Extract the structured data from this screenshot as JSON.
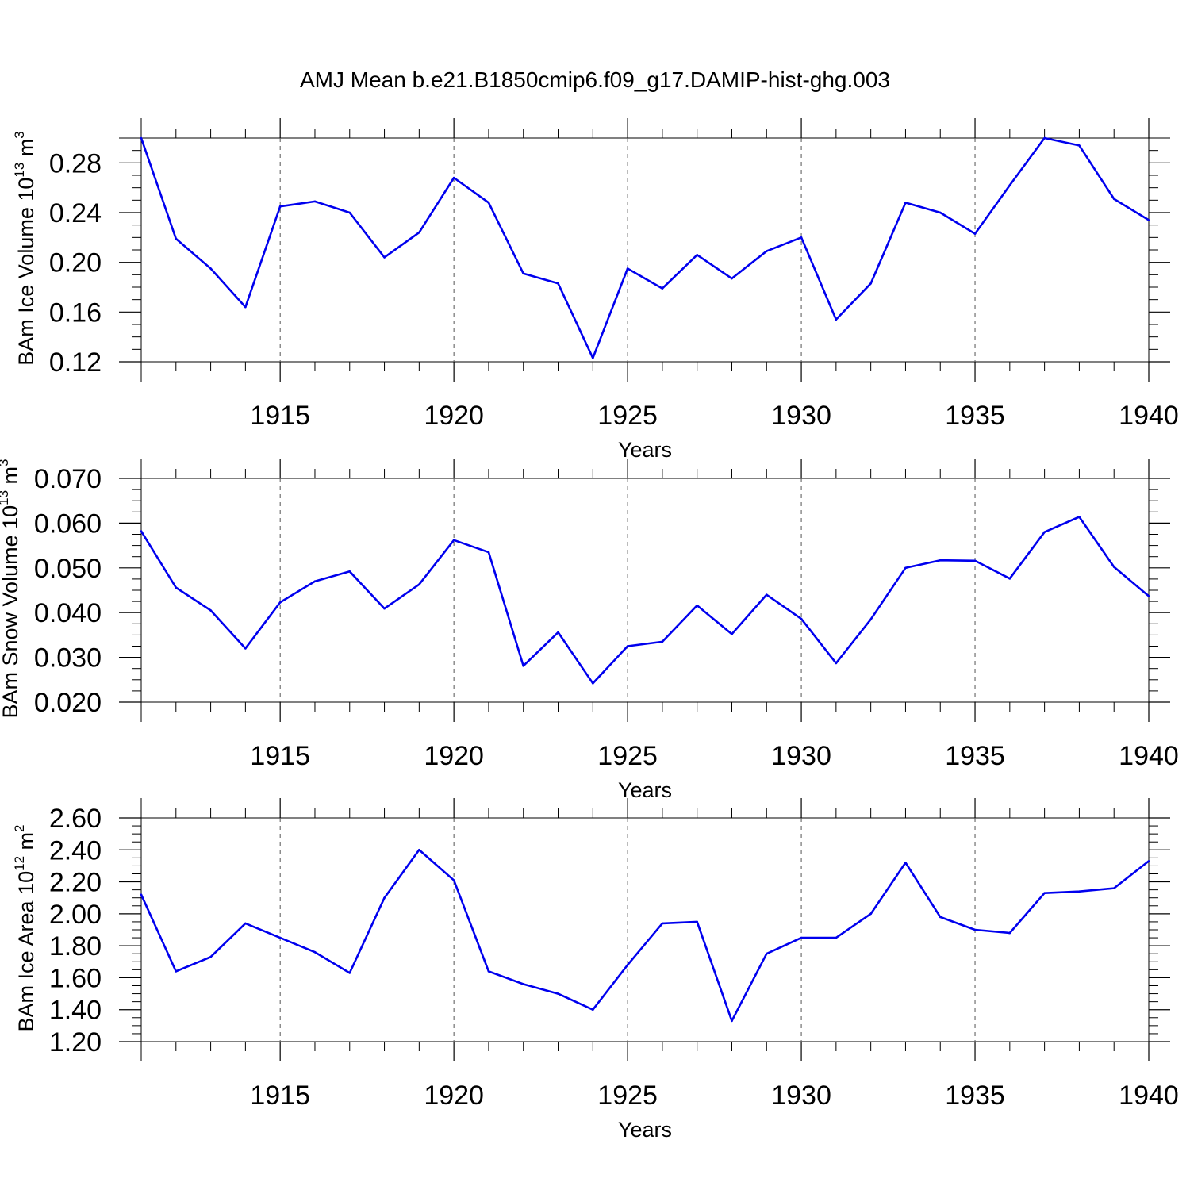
{
  "title": "AMJ Mean b.e21.B1850cmip6.f09_g17.DAMIP-hist-ghg.003",
  "chart_data": [
    {
      "type": "line",
      "ylabel": {
        "prefix": "BAm Ice Volume 10",
        "exp": "13",
        "unit": " m",
        "unit_exp": "3"
      },
      "xlabel": "Years",
      "xlim": [
        1911,
        1940
      ],
      "ylim": [
        0.12,
        0.3
      ],
      "yticks": [
        "0.12",
        "0.16",
        "0.20",
        "0.24",
        "0.28"
      ],
      "xticks": [
        "1915",
        "1920",
        "1925",
        "1930",
        "1935",
        "1940"
      ],
      "x": [
        1911,
        1912,
        1913,
        1914,
        1915,
        1916,
        1917,
        1918,
        1919,
        1920,
        1921,
        1922,
        1923,
        1924,
        1925,
        1926,
        1927,
        1928,
        1929,
        1930,
        1931,
        1932,
        1933,
        1934,
        1935,
        1936,
        1937,
        1938,
        1939,
        1940
      ],
      "series": [
        {
          "color": "#0000ee",
          "values": [
            0.3,
            0.219,
            0.195,
            0.164,
            0.245,
            0.249,
            0.24,
            0.204,
            0.224,
            0.268,
            0.248,
            0.191,
            0.183,
            0.123,
            0.195,
            0.179,
            0.206,
            0.187,
            0.209,
            0.22,
            0.154,
            0.183,
            0.248,
            0.24,
            0.223,
            0.262,
            0.3,
            0.294,
            0.251,
            0.234
          ]
        }
      ]
    },
    {
      "type": "line",
      "ylabel": {
        "prefix": "BAm Snow Volume 10",
        "exp": "13",
        "unit": " m",
        "unit_exp": "3"
      },
      "xlabel": "Years",
      "xlim": [
        1911,
        1940
      ],
      "ylim": [
        0.02,
        0.07
      ],
      "yticks": [
        "0.020",
        "0.030",
        "0.040",
        "0.050",
        "0.060",
        "0.070"
      ],
      "xticks": [
        "1915",
        "1920",
        "1925",
        "1930",
        "1935",
        "1940"
      ],
      "x": [
        1911,
        1912,
        1913,
        1914,
        1915,
        1916,
        1917,
        1918,
        1919,
        1920,
        1921,
        1922,
        1923,
        1924,
        1925,
        1926,
        1927,
        1928,
        1929,
        1930,
        1931,
        1932,
        1933,
        1934,
        1935,
        1936,
        1937,
        1938,
        1939,
        1940
      ],
      "series": [
        {
          "color": "#0000ee",
          "values": [
            0.0582,
            0.0456,
            0.0405,
            0.032,
            0.0423,
            0.047,
            0.0492,
            0.0409,
            0.0463,
            0.0562,
            0.0535,
            0.0281,
            0.0356,
            0.0242,
            0.0325,
            0.0335,
            0.0416,
            0.0352,
            0.044,
            0.0386,
            0.0287,
            0.0385,
            0.05,
            0.0517,
            0.0516,
            0.0476,
            0.058,
            0.0614,
            0.0502,
            0.0437
          ]
        }
      ]
    },
    {
      "type": "line",
      "ylabel": {
        "prefix": "BAm Ice Area 10",
        "exp": "12",
        "unit": " m",
        "unit_exp": "2"
      },
      "xlabel": "Years",
      "xlim": [
        1911,
        1940
      ],
      "ylim": [
        1.2,
        2.6
      ],
      "yticks": [
        "1.20",
        "1.40",
        "1.60",
        "1.80",
        "2.00",
        "2.20",
        "2.40",
        "2.60"
      ],
      "xticks": [
        "1915",
        "1920",
        "1925",
        "1930",
        "1935",
        "1940"
      ],
      "x": [
        1911,
        1912,
        1913,
        1914,
        1915,
        1916,
        1917,
        1918,
        1919,
        1920,
        1921,
        1922,
        1923,
        1924,
        1925,
        1926,
        1927,
        1928,
        1929,
        1930,
        1931,
        1932,
        1933,
        1934,
        1935,
        1936,
        1937,
        1938,
        1939,
        1940
      ],
      "series": [
        {
          "color": "#0000ee",
          "values": [
            2.12,
            1.64,
            1.73,
            1.94,
            1.85,
            1.76,
            1.63,
            2.1,
            2.4,
            2.21,
            1.64,
            1.56,
            1.5,
            1.4,
            1.68,
            1.94,
            1.95,
            1.33,
            1.75,
            1.85,
            1.85,
            2.0,
            2.32,
            1.98,
            1.9,
            1.88,
            2.13,
            2.14,
            2.16,
            2.33
          ]
        }
      ]
    }
  ]
}
